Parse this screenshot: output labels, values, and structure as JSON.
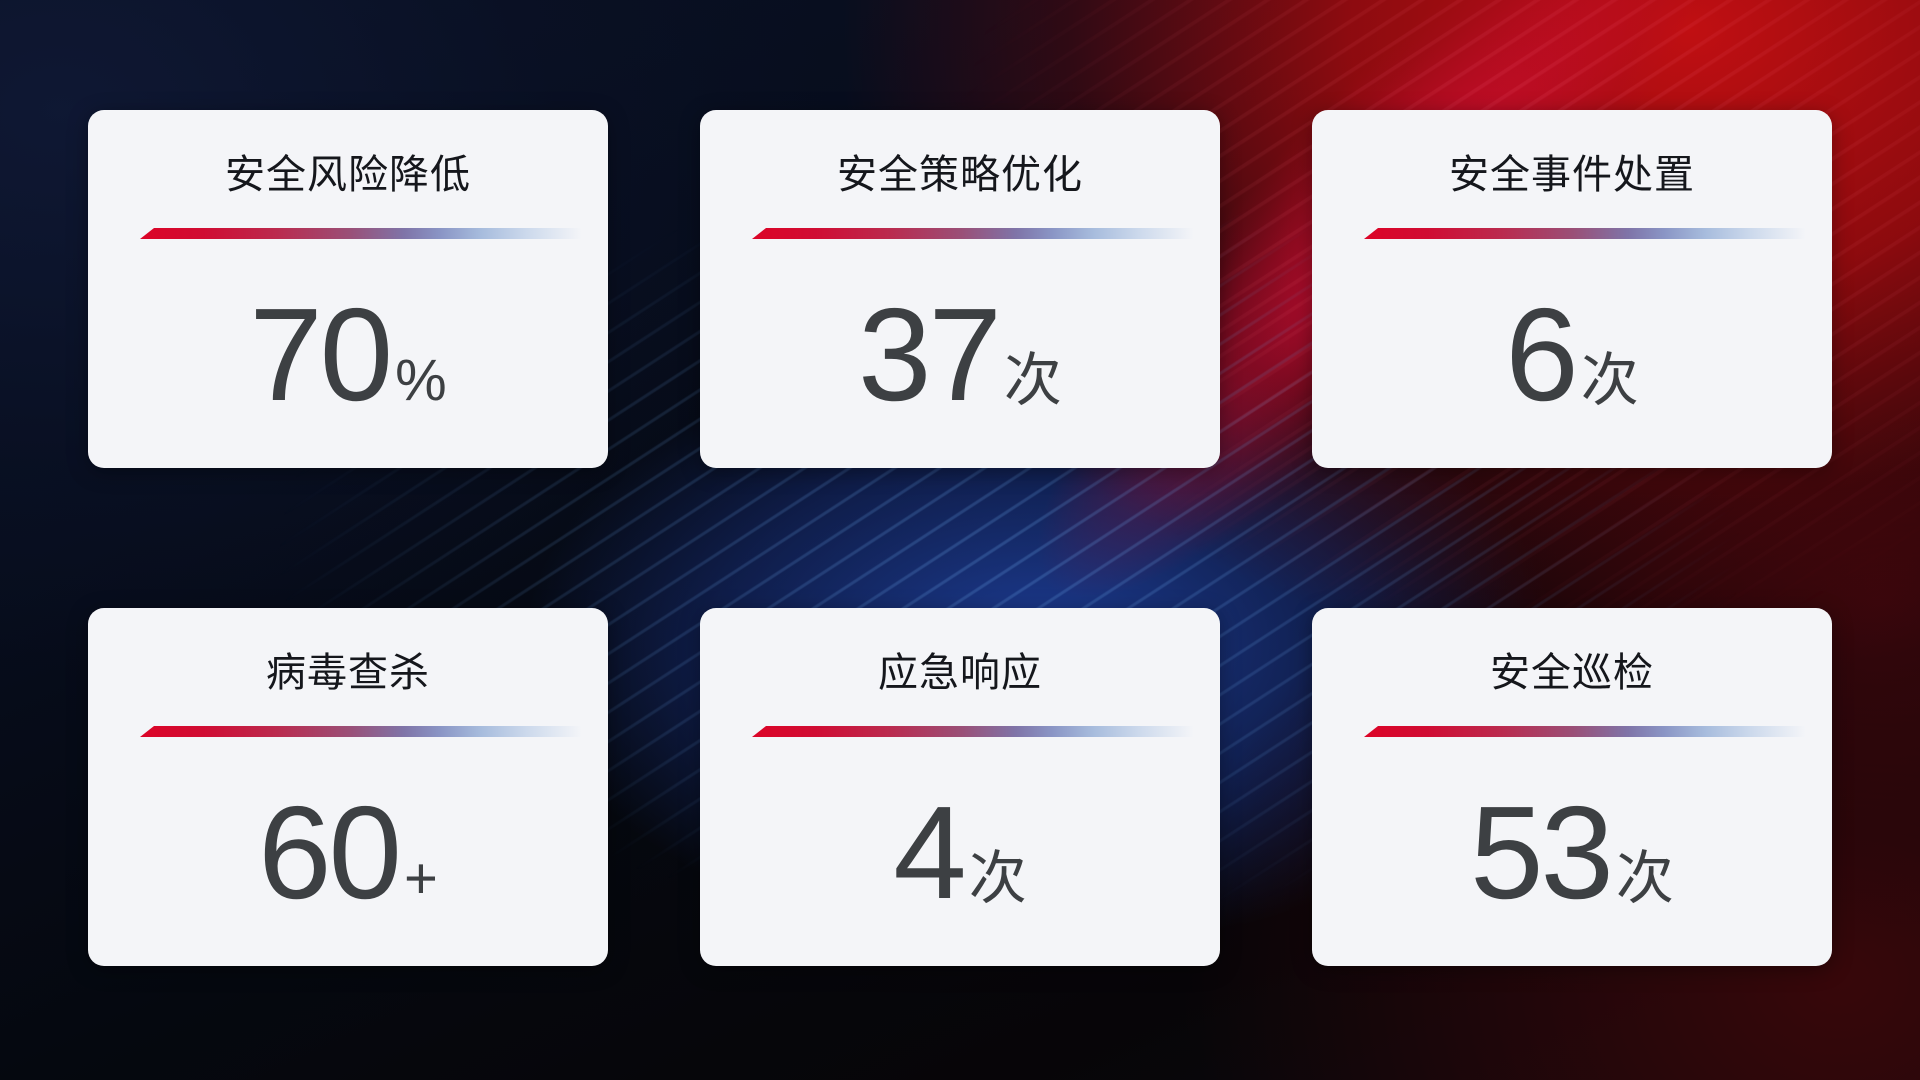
{
  "page": {
    "kind": "security-operations-stats-dashboard",
    "language": "zh-CN"
  },
  "colors": {
    "card_background": "#f4f5f8",
    "title_text": "#15171c",
    "value_text": "#3d4043",
    "accent_line_red": "#dc0427",
    "accent_line_blue_gray": "#a7bcdd",
    "background_red_glow": "#b00d10",
    "background_navy": "#0a1124",
    "background_blue_glow": "#1d3d98",
    "background_maroon": "#3a070a"
  },
  "cards": [
    {
      "title": "安全风险降低",
      "value": "70",
      "unit": "%"
    },
    {
      "title": "安全策略优化",
      "value": "37",
      "unit": "次"
    },
    {
      "title": "安全事件处置",
      "value": "6",
      "unit": "次"
    },
    {
      "title": "病毒查杀",
      "value": "60",
      "unit": "+"
    },
    {
      "title": "应急响应",
      "value": "4",
      "unit": "次"
    },
    {
      "title": "安全巡检",
      "value": "53",
      "unit": "次"
    }
  ]
}
